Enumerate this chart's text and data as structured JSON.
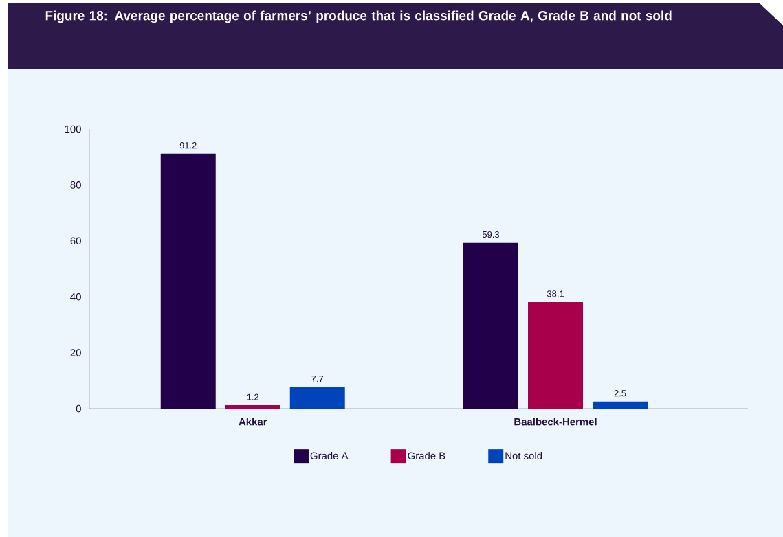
{
  "chart_data": {
    "type": "bar",
    "title": "Figure 18: Average percentage of farmers’ produce that is classified Grade A, Grade B and not sold",
    "categories": [
      "Akkar",
      "Baalbeck-Hermel"
    ],
    "series": [
      {
        "name": "Grade A",
        "color": "#22004a",
        "values": [
          91.2,
          59.3
        ]
      },
      {
        "name": "Grade B",
        "color": "#a8004a",
        "values": [
          1.2,
          38.1
        ]
      },
      {
        "name": "Not sold",
        "color": "#0044bb",
        "values": [
          7.7,
          2.5
        ]
      }
    ],
    "ylim": [
      0,
      100
    ],
    "yticks": [
      0,
      20,
      40,
      60,
      80,
      100
    ],
    "grid": false,
    "legend": "bottom",
    "data_labels": true
  }
}
